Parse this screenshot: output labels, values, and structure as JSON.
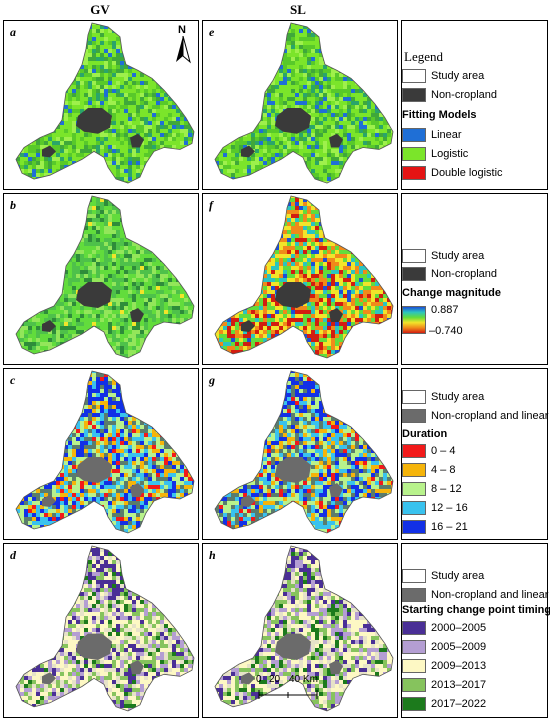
{
  "columns": {
    "left": "GV",
    "right": "SL"
  },
  "panels": [
    {
      "label": "a",
      "scheme": "fit"
    },
    {
      "label": "e",
      "scheme": "fit"
    },
    {
      "label": "b",
      "scheme": "mag_gv"
    },
    {
      "label": "f",
      "scheme": "mag_sl"
    },
    {
      "label": "c",
      "scheme": "dur"
    },
    {
      "label": "g",
      "scheme": "dur"
    },
    {
      "label": "d",
      "scheme": "start"
    },
    {
      "label": "h",
      "scheme": "start"
    }
  ],
  "north_arrow": "N",
  "scale_bar": {
    "ticks": [
      "0",
      "20",
      "40 Km"
    ]
  },
  "legend1": {
    "title": "Legend",
    "study_area": "Study area",
    "noncrop": "Non-cropland",
    "heading": "Fitting Models",
    "items": [
      {
        "label": "Linear",
        "color": "#1f6fd6"
      },
      {
        "label": "Logistic",
        "color": "#7be52a"
      },
      {
        "label": "Double logistic",
        "color": "#e41414"
      }
    ]
  },
  "legend2": {
    "study_area": "Study area",
    "noncrop": "Non-cropland",
    "heading": "Change magnitude",
    "max": "0.887",
    "min": "–0.740"
  },
  "legend3": {
    "study_area": "Study area",
    "noncrop": "Non-cropland and linear",
    "heading": "Duration",
    "items": [
      {
        "label": "0 – 4",
        "color": "#f21a1a"
      },
      {
        "label": "4 – 8",
        "color": "#f5b40a"
      },
      {
        "label": "8 – 12",
        "color": "#b8f28c"
      },
      {
        "label": "12 – 16",
        "color": "#39c2ee"
      },
      {
        "label": "16 – 21",
        "color": "#1230e6"
      }
    ]
  },
  "legend4": {
    "study_area": "Study area",
    "noncrop": "Non-cropland and linear",
    "heading": "Starting change point timing",
    "items": [
      {
        "label": "2000–2005",
        "color": "#4a2f96"
      },
      {
        "label": "2005–2009",
        "color": "#b49ed3"
      },
      {
        "label": "2009–2013",
        "color": "#fdf8c4"
      },
      {
        "label": "2013–2017",
        "color": "#86c35d"
      },
      {
        "label": "2017–2022",
        "color": "#1c7a1c"
      }
    ]
  },
  "colors": {
    "noncrop_dark": "#3a3a3a",
    "noncrop_gray": "#6b6b6b",
    "ramp": [
      "#1c4fd8",
      "#2bc4c0",
      "#62dc3c",
      "#f2e42a",
      "#f08a1a",
      "#d21d10"
    ]
  }
}
